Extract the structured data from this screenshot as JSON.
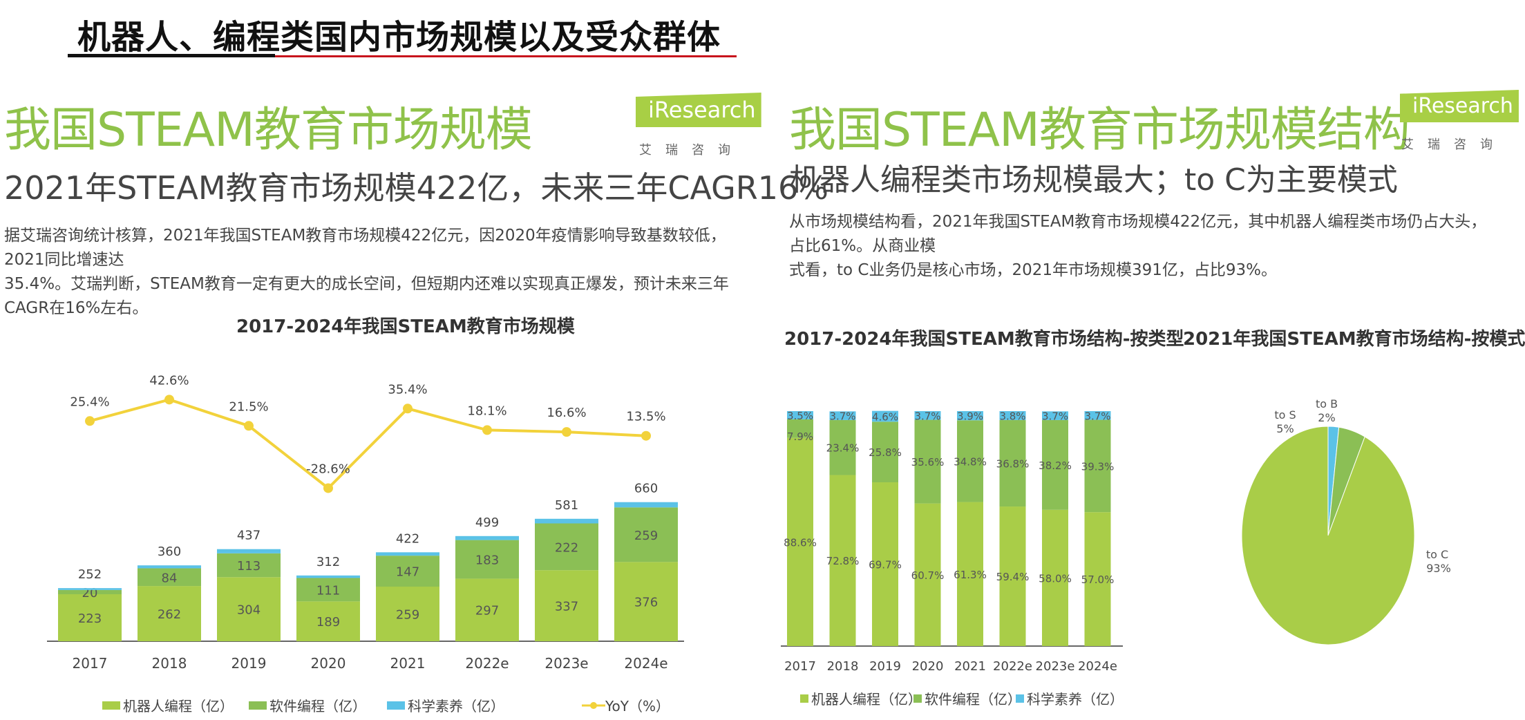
{
  "page": {
    "title": "机器人、编程类国内市场规模以及受众群体"
  },
  "brand": {
    "logo_text": "iResearch",
    "logo_cn": "艾瑞咨询"
  },
  "colors": {
    "robot": "#a9cd48",
    "software": "#8bbf55",
    "science": "#5bc2e7",
    "yoy": "#f2d23b",
    "accent_green": "#8fc24a",
    "accent_red": "#c8141c"
  },
  "left": {
    "title": "我国STEAM教育市场规模",
    "subtitle": "2021年STEAM教育市场规模422亿，未来三年CAGR16%",
    "text_line1": "据艾瑞咨询统计核算，2021年我国STEAM教育市场规模422亿元，因2020年疫情影响导致基数较低，2021同比增速达",
    "text_line2": "35.4%。艾瑞判断，STEAM教育一定有更大的成长空间，但短期内还难以实现真正爆发，预计未来三年CAGR在16%左右。",
    "legend": [
      "机器人编程（亿）",
      "软件编程（亿）",
      "科学素养（亿）",
      "YoY（%）"
    ]
  },
  "right": {
    "title": "我国STEAM教育市场规模结构",
    "subtitle": "机器人编程类市场规模最大；to C为主要模式",
    "text_line1": "从市场规模结构看，2021年我国STEAM教育市场规模422亿元，其中机器人编程类市场仍占大头，占比61%。从商业模",
    "text_line2": "式看，to C业务仍是核心市场，2021年市场规模391亿，占比93%。",
    "legend": [
      "机器人编程（亿）",
      "软件编程（亿）",
      "科学素养（亿）"
    ]
  },
  "chart_data": [
    {
      "type": "bar",
      "stacked": true,
      "title": "2017-2024年我国STEAM教育市场规模",
      "categories": [
        "2017",
        "2018",
        "2019",
        "2020",
        "2021",
        "2022e",
        "2023e",
        "2024e"
      ],
      "series": [
        {
          "name": "机器人编程（亿）",
          "values": [
            223,
            262,
            304,
            189,
            259,
            297,
            337,
            376
          ]
        },
        {
          "name": "软件编程（亿）",
          "values": [
            20,
            84,
            113,
            111,
            147,
            183,
            222,
            259
          ]
        },
        {
          "name": "科学素养（亿）",
          "values": [
            9,
            14,
            20,
            12,
            16,
            19,
            22,
            25
          ]
        }
      ],
      "totals": [
        252,
        360,
        437,
        312,
        422,
        499,
        581,
        660
      ],
      "line_series": {
        "name": "YoY（%）",
        "values": [
          25.4,
          42.6,
          21.5,
          -28.6,
          35.4,
          18.1,
          16.6,
          13.5
        ],
        "labels": [
          "25.4%",
          "42.6%",
          "21.5%",
          "-28.6%",
          "35.4%",
          "18.1%",
          "16.6%",
          "13.5%"
        ]
      },
      "xlabel": "",
      "ylabel": "",
      "legend_position": "bottom"
    },
    {
      "type": "bar",
      "stacked": true,
      "percent": true,
      "title": "2017-2024年我国STEAM教育市场结构-按类型",
      "categories": [
        "2017",
        "2018",
        "2019",
        "2020",
        "2021",
        "2022e",
        "2023e",
        "2024e"
      ],
      "series": [
        {
          "name": "机器人编程（亿）",
          "values": [
            88.6,
            72.8,
            69.7,
            60.7,
            61.3,
            59.4,
            58.0,
            57.0
          ],
          "labels": [
            "88.6%",
            "72.8%",
            "69.7%",
            "60.7%",
            "61.3%",
            "59.4%",
            "58.0%",
            "57.0%"
          ]
        },
        {
          "name": "软件编程（亿）",
          "values": [
            7.9,
            23.4,
            25.8,
            35.6,
            34.8,
            36.8,
            38.2,
            39.3
          ],
          "labels": [
            "7.9%",
            "23.4%",
            "25.8%",
            "35.6%",
            "34.8%",
            "36.8%",
            "38.2%",
            "39.3%"
          ]
        },
        {
          "name": "科学素养（亿）",
          "values": [
            3.5,
            3.7,
            4.6,
            3.7,
            3.9,
            3.8,
            3.7,
            3.7
          ],
          "labels": [
            "3.5%",
            "3.7%",
            "4.6%",
            "3.7%",
            "3.9%",
            "3.8%",
            "3.7%",
            "3.7%"
          ]
        }
      ],
      "ylim": [
        0,
        100
      ],
      "legend_position": "bottom"
    },
    {
      "type": "pie",
      "title": "2021年我国STEAM教育市场结构-按模式",
      "slices": [
        {
          "name": "to B",
          "value": 2,
          "label": "2%"
        },
        {
          "name": "to S",
          "value": 5,
          "label": "5%"
        },
        {
          "name": "to C",
          "value": 93,
          "label": "93%"
        }
      ]
    }
  ]
}
